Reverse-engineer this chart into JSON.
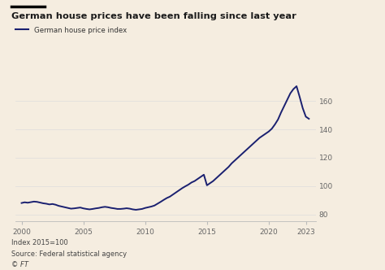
{
  "title": "German house prices have been falling since last year",
  "legend_label": "German house price index",
  "footnote1": "Index 2015=100",
  "footnote2": "Source: Federal statistical agency",
  "footnote3": "© FT",
  "line_color": "#1a2070",
  "background_color": "#f5ede0",
  "title_color": "#1a1a1a",
  "ylim": [
    75,
    178
  ],
  "yticks": [
    80,
    100,
    120,
    140,
    160
  ],
  "xticks": [
    2000,
    2005,
    2010,
    2015,
    2020,
    2023
  ],
  "xlim": [
    1999.5,
    2023.8
  ],
  "data": {
    "years": [
      2000.0,
      2000.25,
      2000.5,
      2000.75,
      2001.0,
      2001.25,
      2001.5,
      2001.75,
      2002.0,
      2002.25,
      2002.5,
      2002.75,
      2003.0,
      2003.25,
      2003.5,
      2003.75,
      2004.0,
      2004.25,
      2004.5,
      2004.75,
      2005.0,
      2005.25,
      2005.5,
      2005.75,
      2006.0,
      2006.25,
      2006.5,
      2006.75,
      2007.0,
      2007.25,
      2007.5,
      2007.75,
      2008.0,
      2008.25,
      2008.5,
      2008.75,
      2009.0,
      2009.25,
      2009.5,
      2009.75,
      2010.0,
      2010.25,
      2010.5,
      2010.75,
      2011.0,
      2011.25,
      2011.5,
      2011.75,
      2012.0,
      2012.25,
      2012.5,
      2012.75,
      2013.0,
      2013.25,
      2013.5,
      2013.75,
      2014.0,
      2014.25,
      2014.5,
      2014.75,
      2015.0,
      2015.25,
      2015.5,
      2015.75,
      2016.0,
      2016.25,
      2016.5,
      2016.75,
      2017.0,
      2017.25,
      2017.5,
      2017.75,
      2018.0,
      2018.25,
      2018.5,
      2018.75,
      2019.0,
      2019.25,
      2019.5,
      2019.75,
      2020.0,
      2020.25,
      2020.5,
      2020.75,
      2021.0,
      2021.25,
      2021.5,
      2021.75,
      2022.0,
      2022.25,
      2022.5,
      2022.75,
      2023.0,
      2023.25
    ],
    "values": [
      88.0,
      88.5,
      88.2,
      88.6,
      89.0,
      88.8,
      88.3,
      87.8,
      87.5,
      87.0,
      87.3,
      86.8,
      86.0,
      85.5,
      85.0,
      84.5,
      84.0,
      84.2,
      84.5,
      84.8,
      84.2,
      83.8,
      83.5,
      83.8,
      84.2,
      84.5,
      85.0,
      85.3,
      85.0,
      84.5,
      84.2,
      83.8,
      83.8,
      84.0,
      84.3,
      84.0,
      83.5,
      83.2,
      83.5,
      83.8,
      84.5,
      85.0,
      85.5,
      86.2,
      87.5,
      88.8,
      90.2,
      91.5,
      92.5,
      94.0,
      95.5,
      97.0,
      98.5,
      99.8,
      101.0,
      102.5,
      103.5,
      105.0,
      106.5,
      108.0,
      100.5,
      102.0,
      103.5,
      105.5,
      107.5,
      109.5,
      111.5,
      113.5,
      116.0,
      118.0,
      120.0,
      122.0,
      124.0,
      126.0,
      128.0,
      130.0,
      132.0,
      134.0,
      135.5,
      137.0,
      138.5,
      140.5,
      143.5,
      147.0,
      152.0,
      156.5,
      161.0,
      165.5,
      168.5,
      170.5,
      163.0,
      155.0,
      149.0,
      147.5
    ]
  }
}
